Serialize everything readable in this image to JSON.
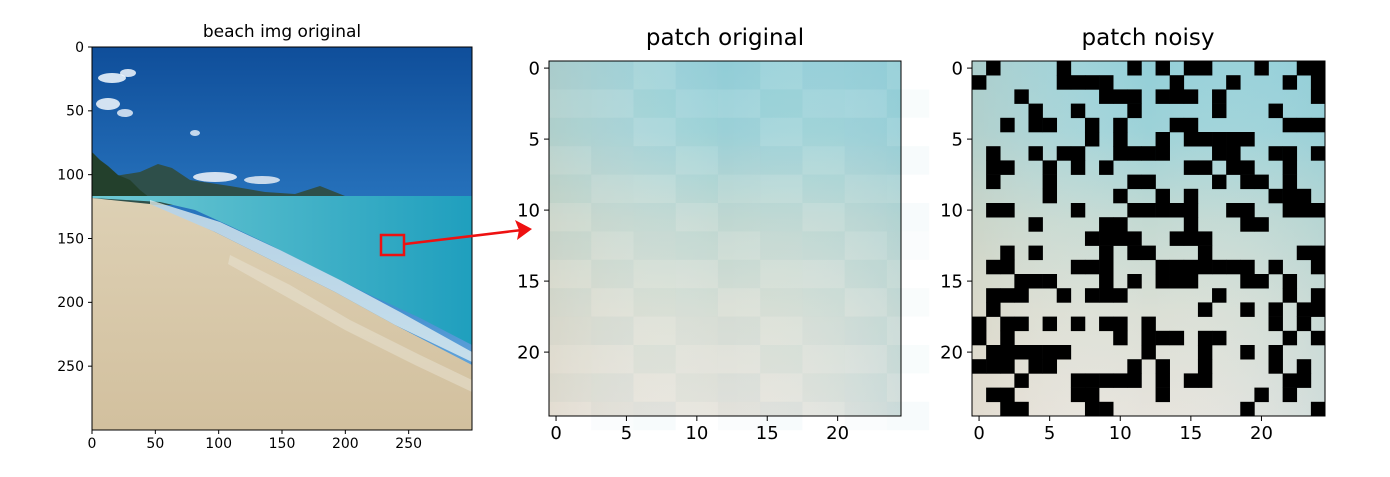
{
  "chart_data": [
    {
      "type": "image",
      "title": "beach img original",
      "x_ticks": [
        "0",
        "50",
        "100",
        "150",
        "200",
        "250"
      ],
      "y_ticks": [
        "0",
        "50",
        "100",
        "150",
        "200",
        "250"
      ],
      "xlim": [
        0,
        300
      ],
      "ylim": [
        0,
        300
      ],
      "highlight_box": {
        "x": [
          230,
          250
        ],
        "y": [
          150,
          170
        ],
        "color": "#ff0000"
      }
    },
    {
      "type": "image",
      "title": "patch original",
      "x_ticks": [
        "0",
        "5",
        "10",
        "15",
        "20"
      ],
      "y_ticks": [
        "0",
        "5",
        "10",
        "15",
        "20"
      ],
      "xlim": [
        0,
        25
      ],
      "ylim": [
        0,
        25
      ]
    },
    {
      "type": "image",
      "title": "patch noisy",
      "x_ticks": [
        "0",
        "5",
        "10",
        "15",
        "20"
      ],
      "y_ticks": [
        "0",
        "5",
        "10",
        "15",
        "20"
      ],
      "xlim": [
        0,
        25
      ],
      "ylim": [
        0,
        25
      ],
      "noise_color": "#000000"
    }
  ],
  "arrow_color": "#ee1111"
}
